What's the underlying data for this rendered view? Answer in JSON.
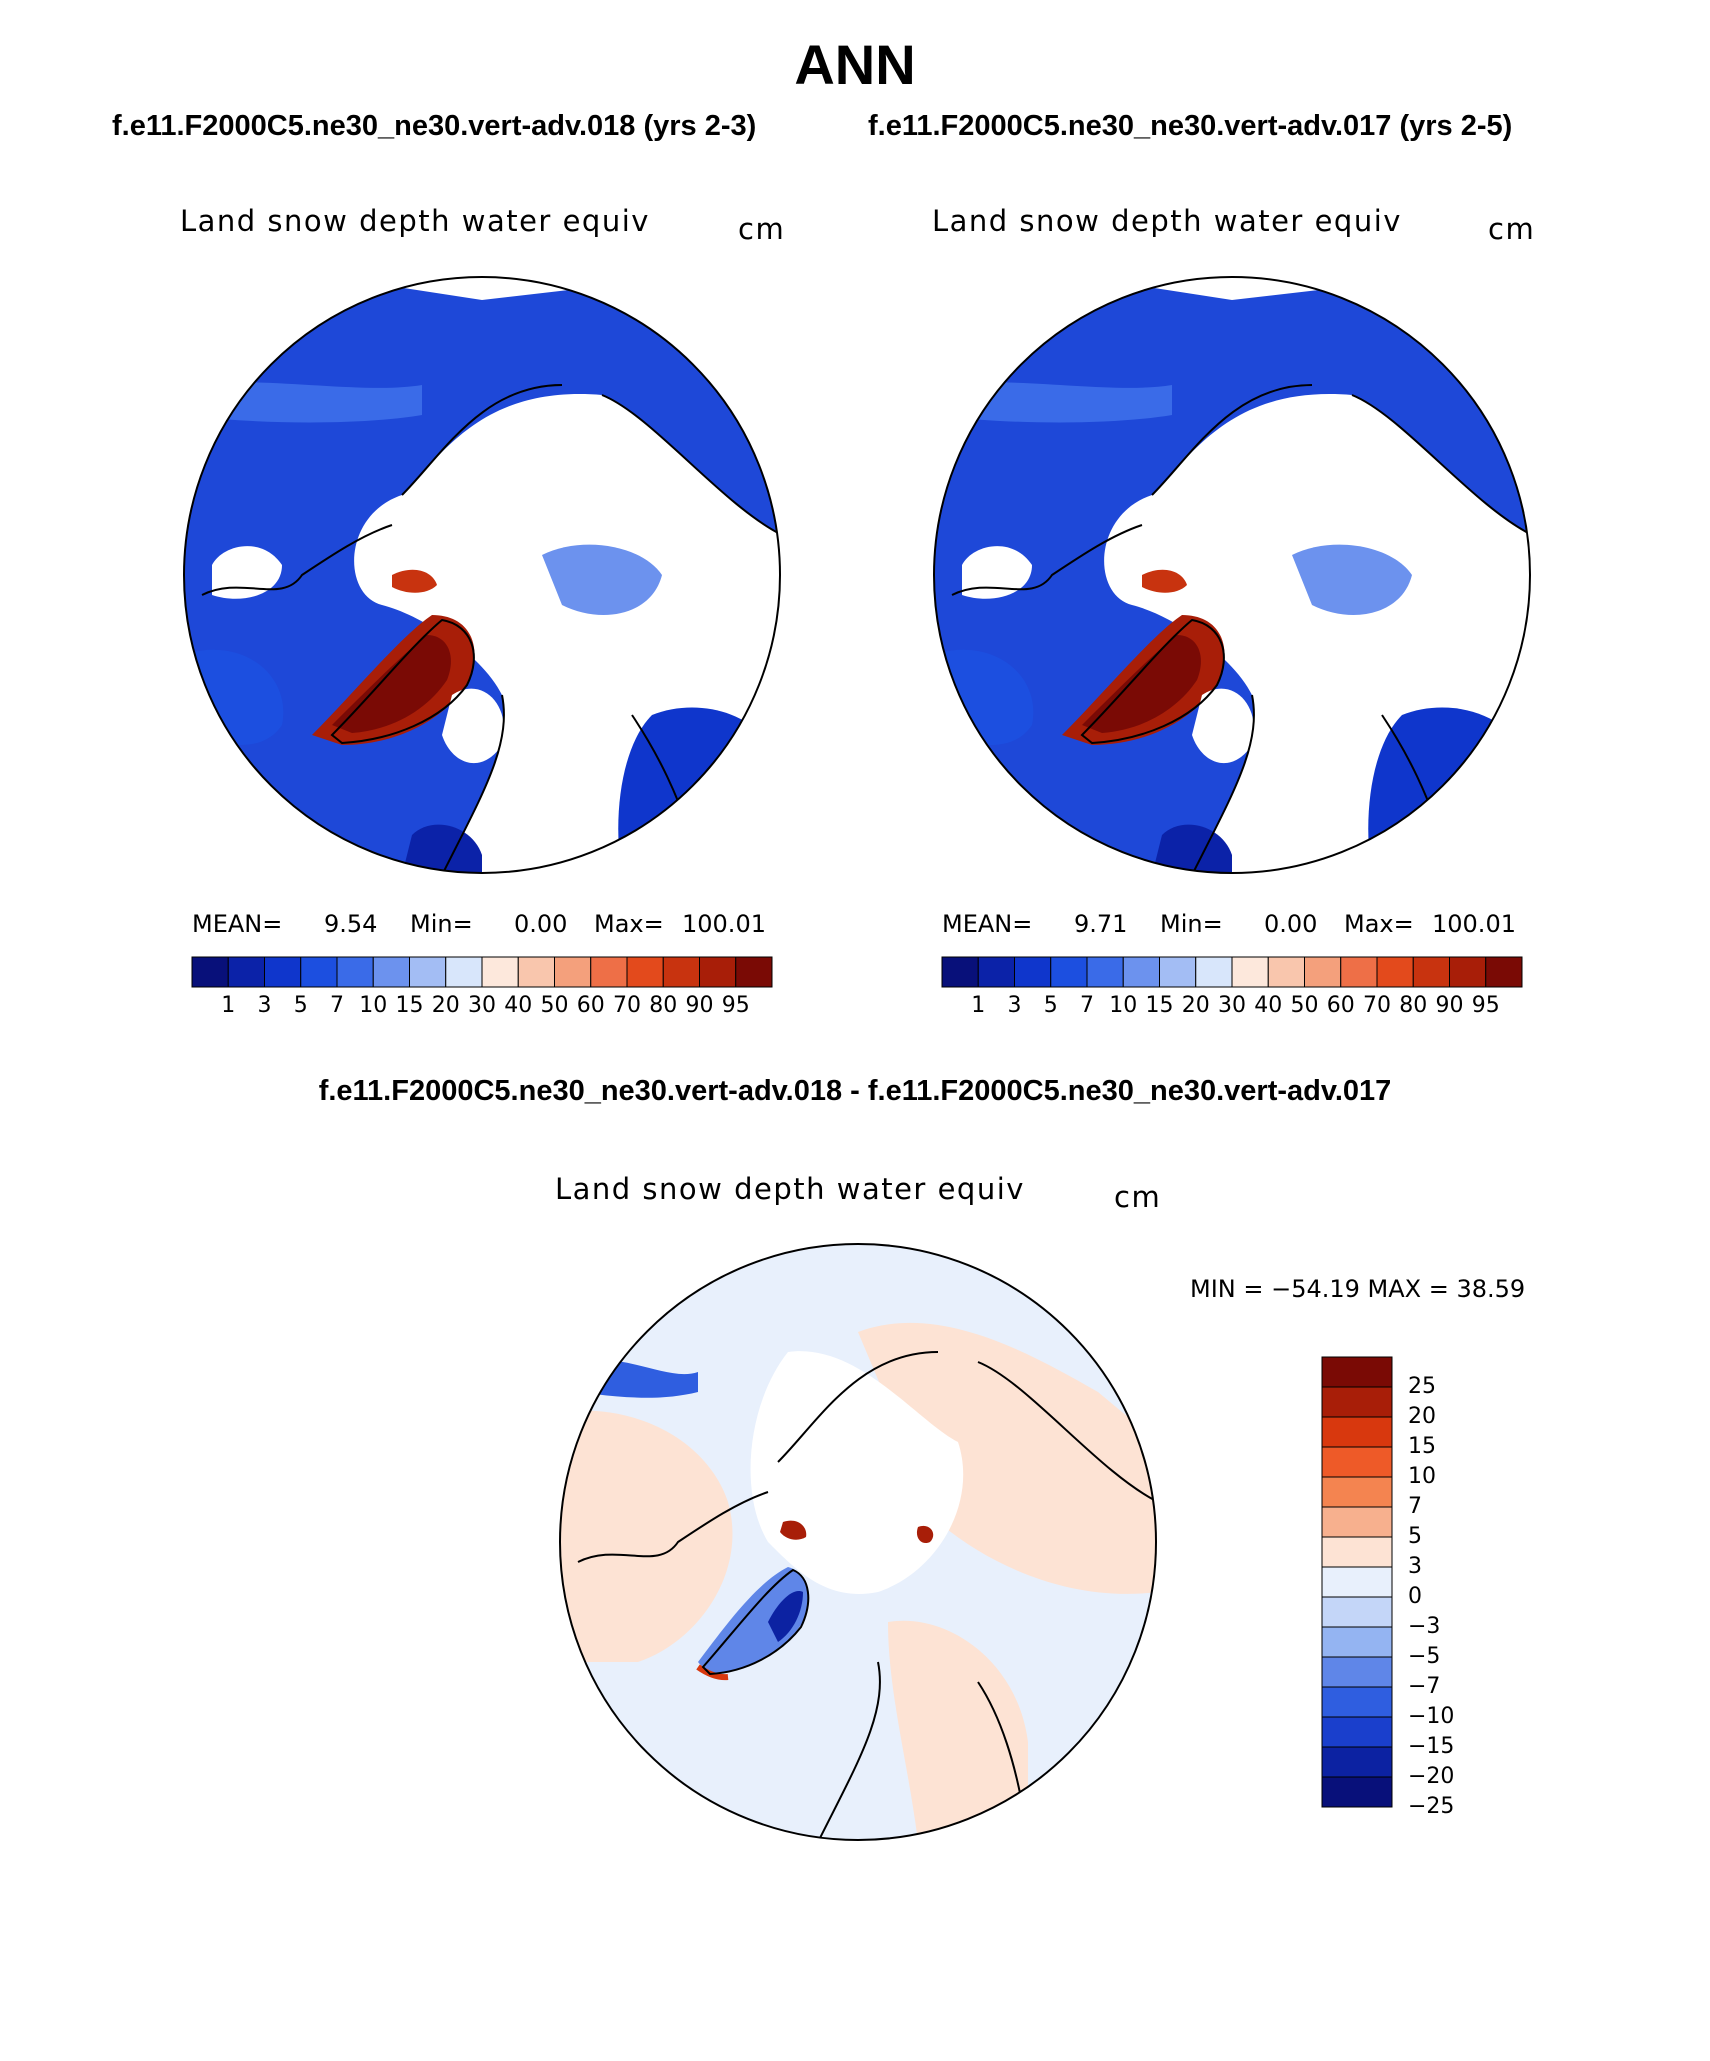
{
  "figure": {
    "title": "ANN",
    "case_left": "f.e11.F2000C5.ne30_ne30.vert-adv.018 (yrs 2-3)",
    "case_right": "f.e11.F2000C5.ne30_ne30.vert-adv.017 (yrs 2-5)",
    "diff_title": "f.e11.F2000C5.ne30_ne30.vert-adv.018 - f.e11.F2000C5.ne30_ne30.vert-adv.017"
  },
  "panels": {
    "left": {
      "variable": "Land snow depth water equiv",
      "units": "cm",
      "mean_label": "MEAN=",
      "mean_value": "9.54",
      "min_label": "Min=",
      "min_value": "0.00",
      "max_label": "Max=",
      "max_value": "100.01"
    },
    "right": {
      "variable": "Land snow depth water equiv",
      "units": "cm",
      "mean_label": "MEAN=",
      "mean_value": "9.71",
      "min_label": "Min=",
      "min_value": "0.00",
      "max_label": "Max=",
      "max_value": "100.01"
    },
    "diff": {
      "variable": "Land snow depth water equiv",
      "units": "cm",
      "minmax_text": "MIN = −54.19 MAX =   38.59"
    }
  },
  "colorbars": {
    "abs": {
      "colors": [
        "#08107a",
        "#0b22a8",
        "#0f36cc",
        "#1c4fe0",
        "#3a6be8",
        "#6c92ee",
        "#a3bdf4",
        "#d8e6fb",
        "#fde8dc",
        "#f9c6ad",
        "#f4a07c",
        "#ee6f47",
        "#e34a1c",
        "#c8330f",
        "#a81e08",
        "#7a0a05"
      ],
      "ticks": [
        "1",
        "3",
        "5",
        "7",
        "10",
        "15",
        "20",
        "30",
        "40",
        "50",
        "60",
        "70",
        "80",
        "90",
        "95"
      ]
    },
    "diff": {
      "colors": [
        "#7a0a05",
        "#a81e08",
        "#d8380e",
        "#ee5a28",
        "#f48450",
        "#f7b08e",
        "#fde3d4",
        "#e8f0fc",
        "#c4d6f8",
        "#94b4f2",
        "#5f86e8",
        "#2f5ee0",
        "#1a3fcc",
        "#0c22a2",
        "#08107a"
      ],
      "ticks": [
        "25",
        "20",
        "15",
        "10",
        "7",
        "5",
        "3",
        "0",
        "−3",
        "−5",
        "−7",
        "−10",
        "−15",
        "−20",
        "−25"
      ]
    }
  }
}
